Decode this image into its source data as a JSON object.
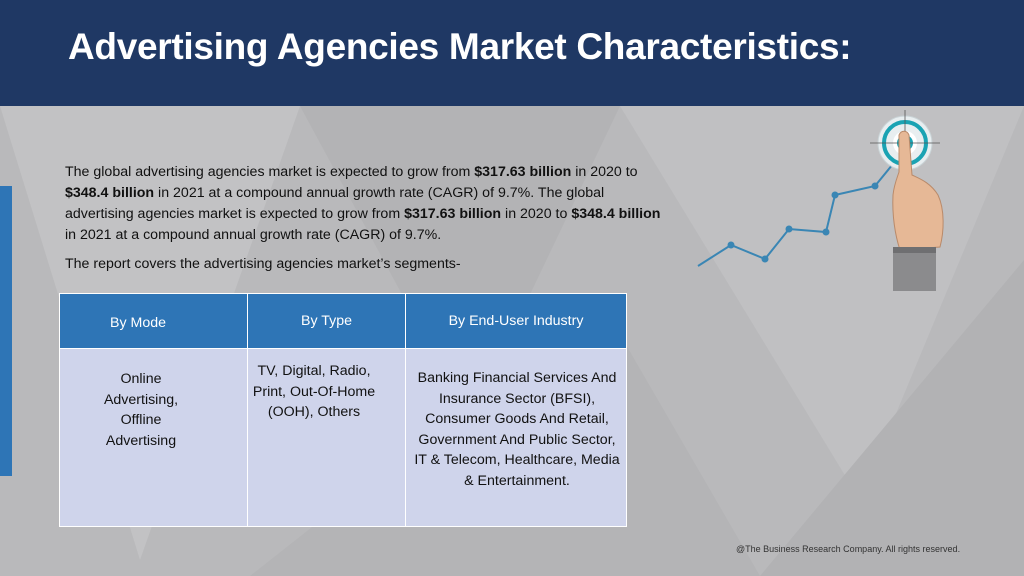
{
  "header": {
    "title": "Advertising Agencies Market Characteristics:"
  },
  "intro": {
    "p1_a": "The global advertising agencies market is expected to grow from ",
    "p1_b": "$317.63 billion",
    "p1_c": " in 2020 to ",
    "p1_d": "$348.4 billion",
    "p1_e": " in 2021 at a compound annual growth rate (CAGR) of 9.7%.  The global advertising agencies market is expected to grow from ",
    "p1_f": "$317.63 billion",
    "p1_g": " in 2020 to ",
    "p1_h": "$348.4 billion",
    "p1_i": " in 2021 at a compound annual growth rate (CAGR) of 9.7%.",
    "segments_line": "The report covers the advertising agencies market’s segments-"
  },
  "table": {
    "headers": [
      "By Mode",
      "By Type",
      "By End-User Industry"
    ],
    "cells": [
      "Online Advertising, Offline Advertising",
      "TV, Digital, Radio, Print, Out-Of-Home (OOH), Others",
      "Banking Financial Services And Insurance Sector (BFSI), Consumer Goods And Retail, Government And Public Sector, IT & Telecom, Healthcare, Media & Entertainment."
    ]
  },
  "footer": {
    "copyright": "@The Business Research Company. All rights reserved."
  },
  "colors": {
    "header_bg": "#1f3864",
    "table_header_bg": "#2e75b6",
    "table_cell_bg": "#cfd4eb",
    "page_bg": "#b9b9bb",
    "accent_line": "#3a86b4",
    "target_teal": "#1aa3b3"
  },
  "icons": [
    "growth-line-chart-icon",
    "target-icon",
    "pointing-hand-icon"
  ]
}
